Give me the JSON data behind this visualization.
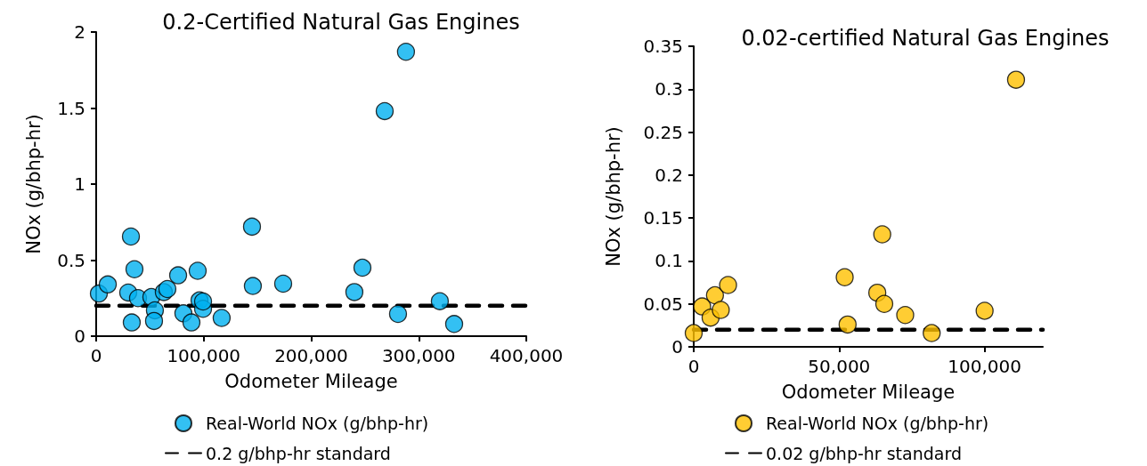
{
  "chart_data": [
    {
      "type": "scatter",
      "title": "0.2-Certified Natural Gas Engines",
      "xlabel": "Odometer Mileage",
      "ylabel": "NOx (g/bhp-hr)",
      "x": [
        2500,
        10800,
        32300,
        35600,
        29800,
        38900,
        33100,
        51300,
        54600,
        53800,
        62900,
        66200,
        76200,
        81100,
        88600,
        94400,
        96100,
        99400,
        99400,
        116700,
        144900,
        145700,
        173900,
        240100,
        247600,
        280700,
        268300,
        288100,
        319600,
        332900
      ],
      "series": [
        {
          "name": "Real-World NOx (g/bhp-hr)",
          "color": "#00b0f0",
          "values": [
            0.28,
            0.34,
            0.655,
            0.44,
            0.287,
            0.25,
            0.09,
            0.257,
            0.17,
            0.1,
            0.29,
            0.31,
            0.4,
            0.15,
            0.09,
            0.43,
            0.235,
            0.18,
            0.228,
            0.12,
            0.72,
            0.33,
            0.345,
            0.29,
            0.45,
            0.146,
            1.48,
            1.87,
            0.23,
            0.08
          ]
        }
      ],
      "xlim": [
        0,
        400000
      ],
      "xticks": [
        0,
        {
          "value": 100000,
          "label": "100,000"
        },
        {
          "value": 200000,
          "label": "200,000"
        },
        {
          "value": 300000,
          "label": "300,000"
        },
        {
          "value": 400000,
          "label": "400,000"
        }
      ],
      "ylim": [
        0,
        2
      ],
      "yticks": [
        0,
        0.5,
        1,
        1.5,
        2
      ],
      "ref_lines": [
        {
          "axis": "y",
          "value": 0.2,
          "label": "0.2 g/bhp-hr standard",
          "color": "#000000",
          "line_style": "dashed"
        }
      ],
      "legend": "bottom",
      "marker": "circle",
      "grid": false
    },
    {
      "type": "scatter",
      "title": "0.02-certified Natural Gas Engines",
      "xlabel": "Odometer Mileage",
      "ylabel": "NOx (g/bhp-hr)",
      "x": [
        0,
        2900,
        5800,
        7300,
        9300,
        11800,
        51900,
        52900,
        63100,
        64800,
        65500,
        72700,
        81800,
        100000,
        110800
      ],
      "series": [
        {
          "name": "Real-World NOx (g/bhp-hr)",
          "color": "#ffc000",
          "values": [
            0.016,
            0.047,
            0.034,
            0.06,
            0.043,
            0.072,
            0.081,
            0.026,
            0.063,
            0.131,
            0.05,
            0.037,
            0.016,
            0.042,
            0.311
          ]
        }
      ],
      "xlim": [
        0,
        120000
      ],
      "xticks": [
        0,
        {
          "value": 50000,
          "label": "50,000"
        },
        {
          "value": 100000,
          "label": "100,000"
        }
      ],
      "ylim": [
        0,
        0.35
      ],
      "yticks": [
        0,
        0.05,
        0.1,
        0.15,
        0.2,
        0.25,
        0.3,
        0.35
      ],
      "ref_lines": [
        {
          "axis": "y",
          "value": 0.02,
          "label": "0.02 g/bhp-hr standard",
          "color": "#000000",
          "line_style": "dashed"
        }
      ],
      "legend": "bottom",
      "marker": "circle",
      "grid": false
    }
  ]
}
